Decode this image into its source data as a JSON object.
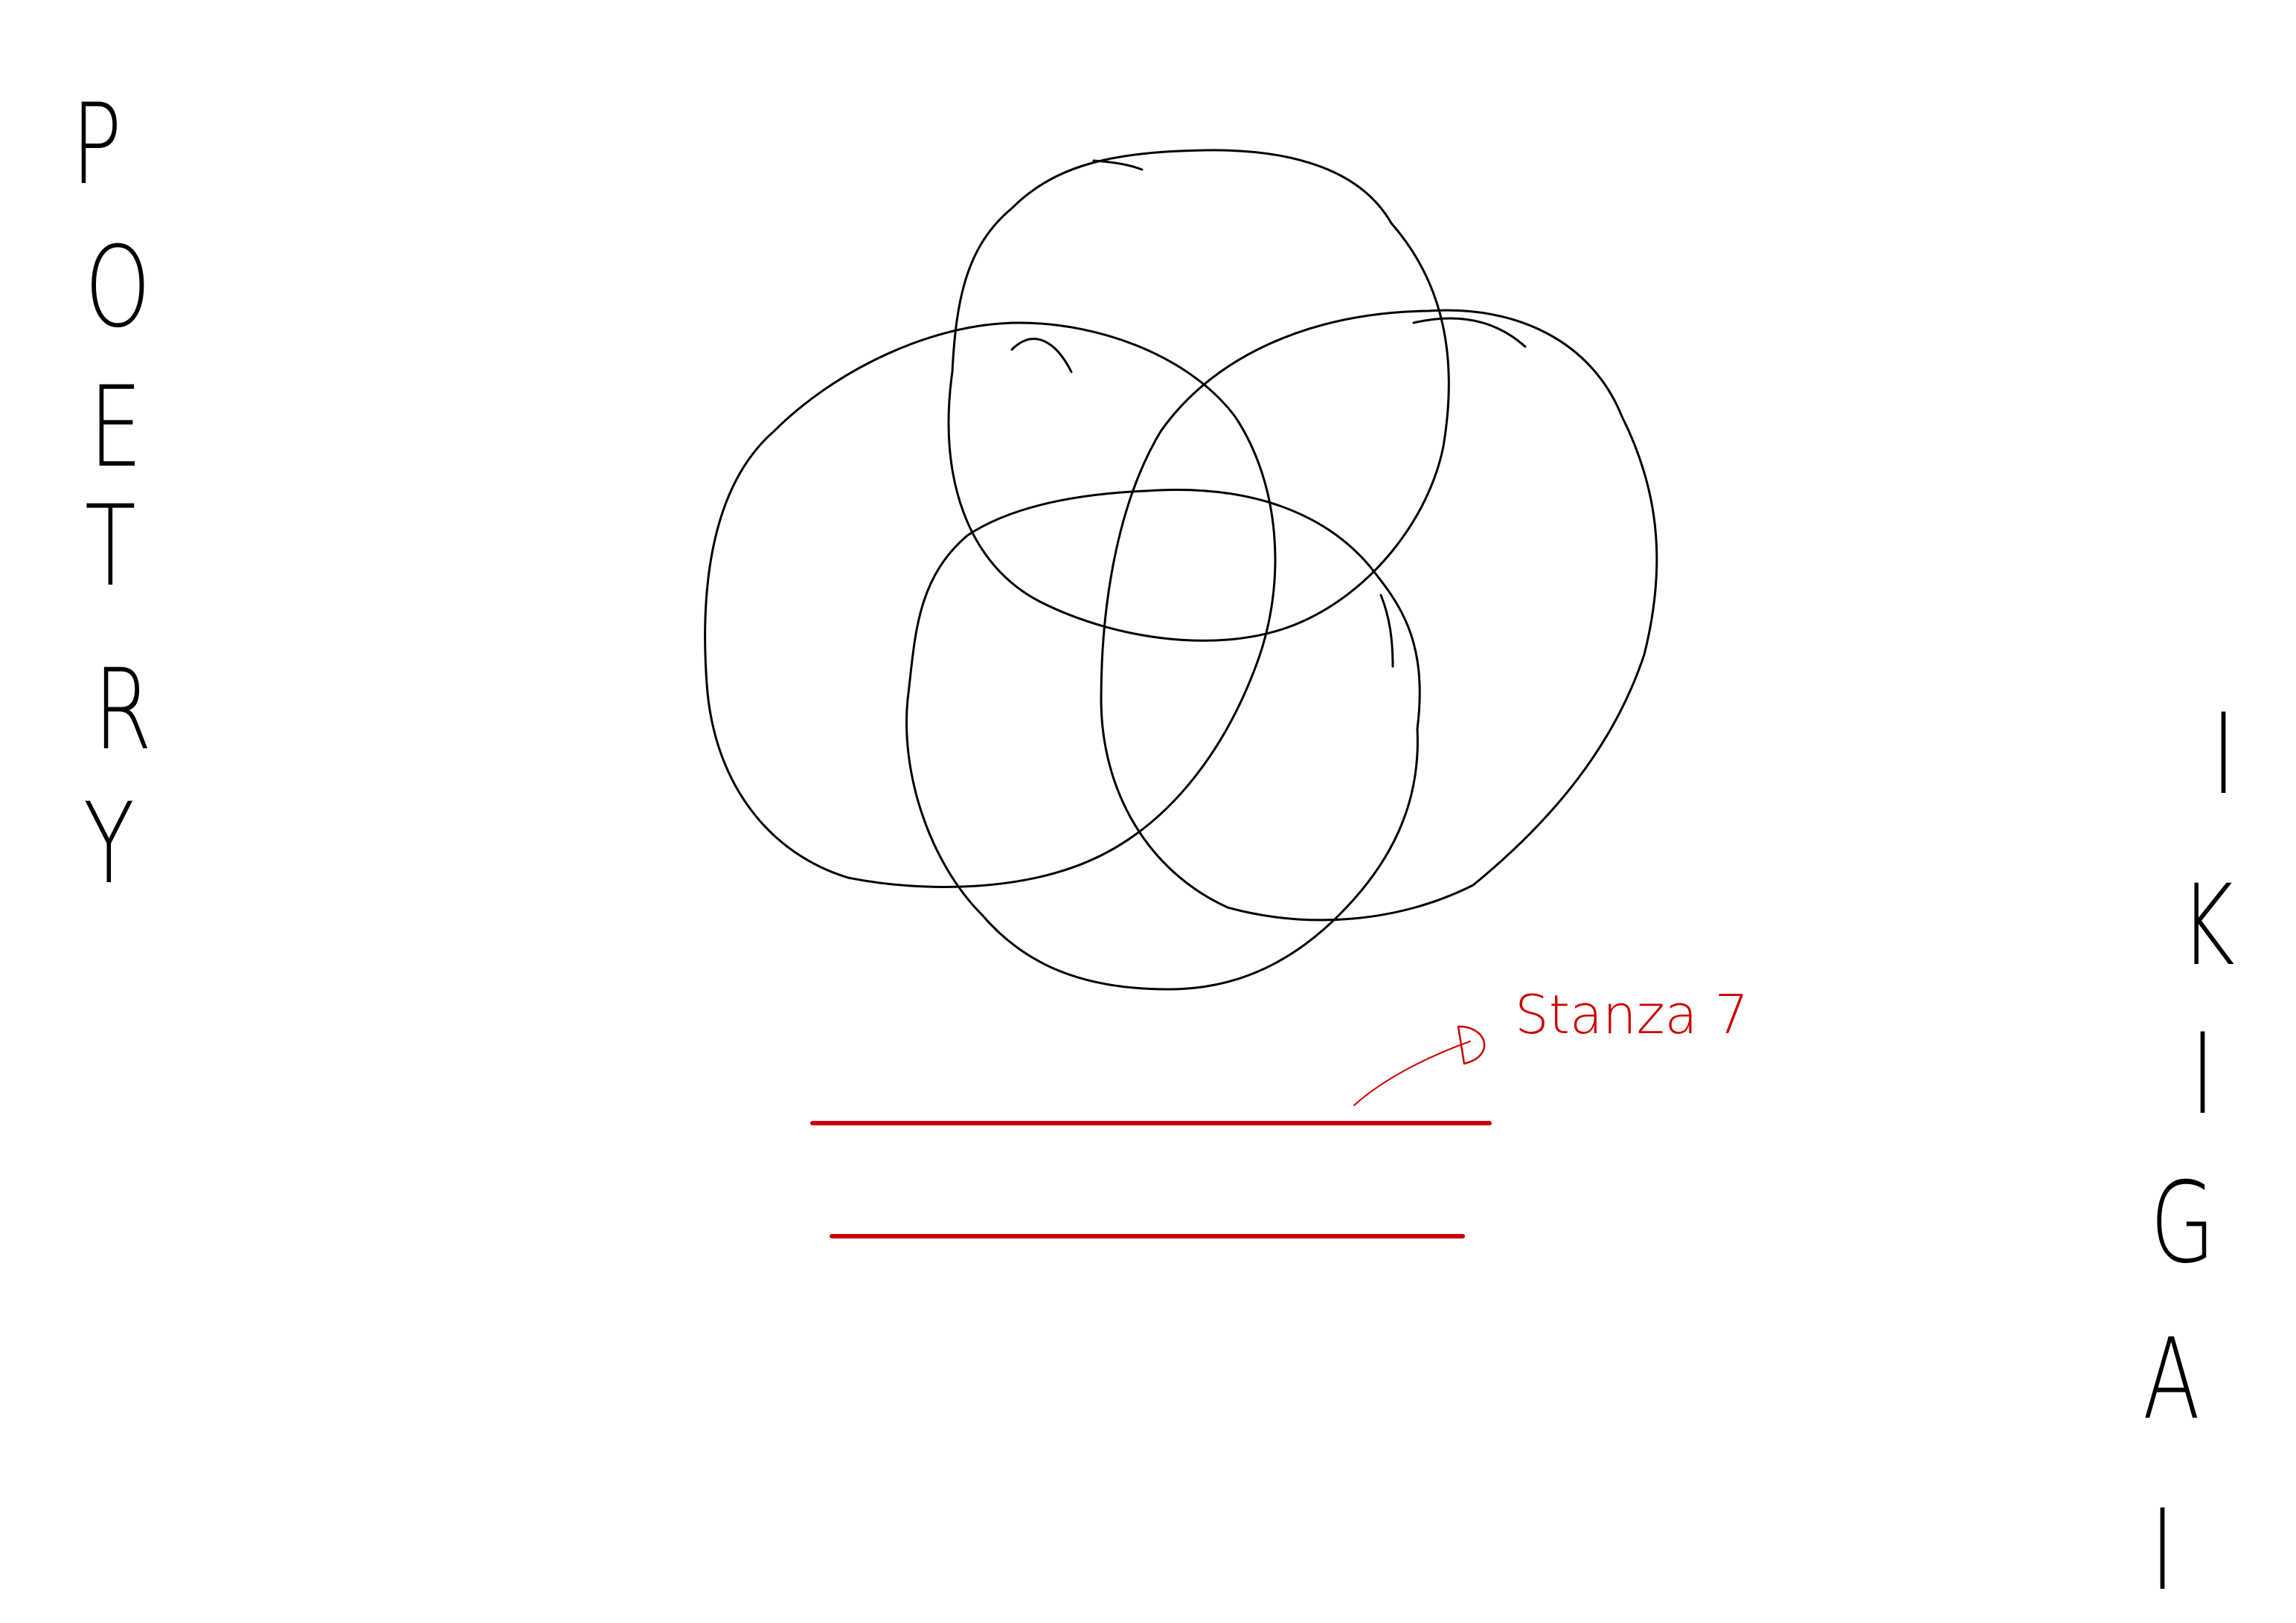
{
  "left_word": {
    "letters": [
      "P",
      "O",
      "E",
      "T",
      "R",
      "Y"
    ]
  },
  "right_word": {
    "letters": [
      "I",
      "K",
      "I",
      "G",
      "A",
      "I"
    ]
  },
  "annotation": {
    "text": "Stanza 7",
    "color": "#cc0000"
  },
  "colors": {
    "ink": "#000000",
    "highlight": "#cc0000",
    "background": "#ffffff"
  }
}
